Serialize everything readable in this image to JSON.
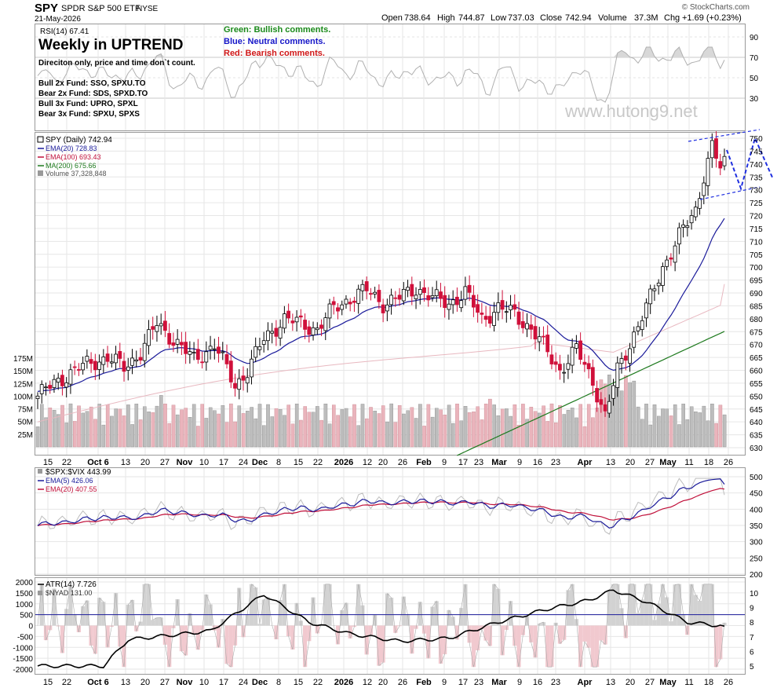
{
  "header": {
    "symbol": "SPY",
    "name": "SPDR S&P 500 ETF",
    "exchange": "NYSE",
    "date": "21-May-2026",
    "copyright": "© StockCharts.com",
    "open_label": "Open",
    "open": "738.64",
    "high_label": "High",
    "high": "744.87",
    "low": "737.03",
    "close_label": "Close",
    "close": "742.94",
    "volume_label": "Volume",
    "volume": "37.3M",
    "chg_label": "Chg",
    "chg": "+1.69 (+0.23%)"
  },
  "notes": {
    "title": "Weekly in UPTREND",
    "subtitle": "Direciton only, price and time don`t count.",
    "funds": [
      "Bull 2x Fund: SSO, SPXU.TO",
      "Bear 2x Fund: SDS, SPXD.TO",
      "Bull 3x Fund: UPRO, SPXL",
      "Bear 3x Fund: SPXU, SPXS"
    ],
    "legend": [
      {
        "text": "Green: Bullish comments.",
        "color": "#1a8a1a"
      },
      {
        "text": "Blue: Neutral comments.",
        "color": "#1515c8"
      },
      {
        "text": "Red: Bearish comments.",
        "color": "#d01818"
      }
    ],
    "watermark": "www.hutong9.net"
  },
  "colors": {
    "up": "#ffffff",
    "down": "#d0103a",
    "ema20": "#1a1a9a",
    "ema100": "#e8b8c0",
    "ma200": "#1e7a1e",
    "vol_up": "#bdbdbd",
    "vol_down": "#eab4bc",
    "projection": "#2030e0",
    "grid": "#e6e6e6"
  },
  "chart_data": [
    {
      "type": "line",
      "panel": "rsi",
      "label": "RSI(14) 67.41",
      "ylim": [
        15,
        100
      ],
      "y_ticks": [
        90,
        70,
        50,
        30
      ],
      "series": [
        {
          "name": "RSI(14)",
          "last": 67.41
        }
      ]
    },
    {
      "type": "candlestick",
      "panel": "price",
      "legend": [
        {
          "text": "SPY (Daily) 742.94",
          "color": "#000000"
        },
        {
          "text": "EMA(20) 728.83",
          "color": "#1a1a9a"
        },
        {
          "text": "EMA(100) 693.43",
          "color": "#c0103a"
        },
        {
          "text": "MA(200) 675.66",
          "color": "#1e7a1e"
        },
        {
          "text": "Volume 37,328,848",
          "color": "#555555"
        }
      ],
      "ylim": [
        627,
        753
      ],
      "y_ticks": [
        750,
        745,
        740,
        735,
        730,
        725,
        720,
        715,
        710,
        705,
        700,
        695,
        690,
        685,
        680,
        675,
        670,
        665,
        660,
        655,
        650,
        645,
        640,
        635,
        630
      ],
      "volume_ticks": [
        "175M",
        "150M",
        "125M",
        "100M",
        "75M",
        "50M",
        "25M"
      ],
      "volume_ylim": [
        0,
        190
      ],
      "x_labels": [
        "15",
        "22",
        "Oct 6",
        "13",
        "20",
        "27",
        "Nov",
        "10",
        "17",
        "24",
        "Dec",
        "8",
        "15",
        "22",
        "2026",
        "12",
        "20",
        "26",
        "Feb",
        "9",
        "17",
        "23",
        "Mar",
        "9",
        "16",
        "23",
        "Apr",
        "13",
        "20",
        "27",
        "May",
        "11",
        "18",
        "26"
      ],
      "key_levels": {
        "last_close": 742.94,
        "ema20": 728.83,
        "ema100": 693.43,
        "ma200": 675.66
      }
    },
    {
      "type": "line",
      "panel": "spx_vix",
      "legend": [
        {
          "text": "$SPX:$VIX 443.99",
          "color": "#000000"
        },
        {
          "text": "EMA(5) 426.06",
          "color": "#1a1a9a"
        },
        {
          "text": "EMA(20) 407.55",
          "color": "#c0103a"
        }
      ],
      "ylim": [
        195,
        510
      ],
      "y_ticks": [
        500,
        450,
        400,
        350,
        300,
        250,
        200
      ]
    },
    {
      "type": "line",
      "panel": "atr_nyad",
      "legend": [
        {
          "text": "ATR(14) 7.726",
          "color": "#000000"
        },
        {
          "text": "$NYAD 131.00",
          "color": "#555555"
        }
      ],
      "left_ticks": [
        "2000",
        "1500",
        "1000",
        "500",
        "0",
        "-500",
        "-1000",
        "-1500",
        "-2000"
      ],
      "right_ticks": [
        "10",
        "9",
        "8",
        "7",
        "6",
        "5"
      ]
    }
  ]
}
